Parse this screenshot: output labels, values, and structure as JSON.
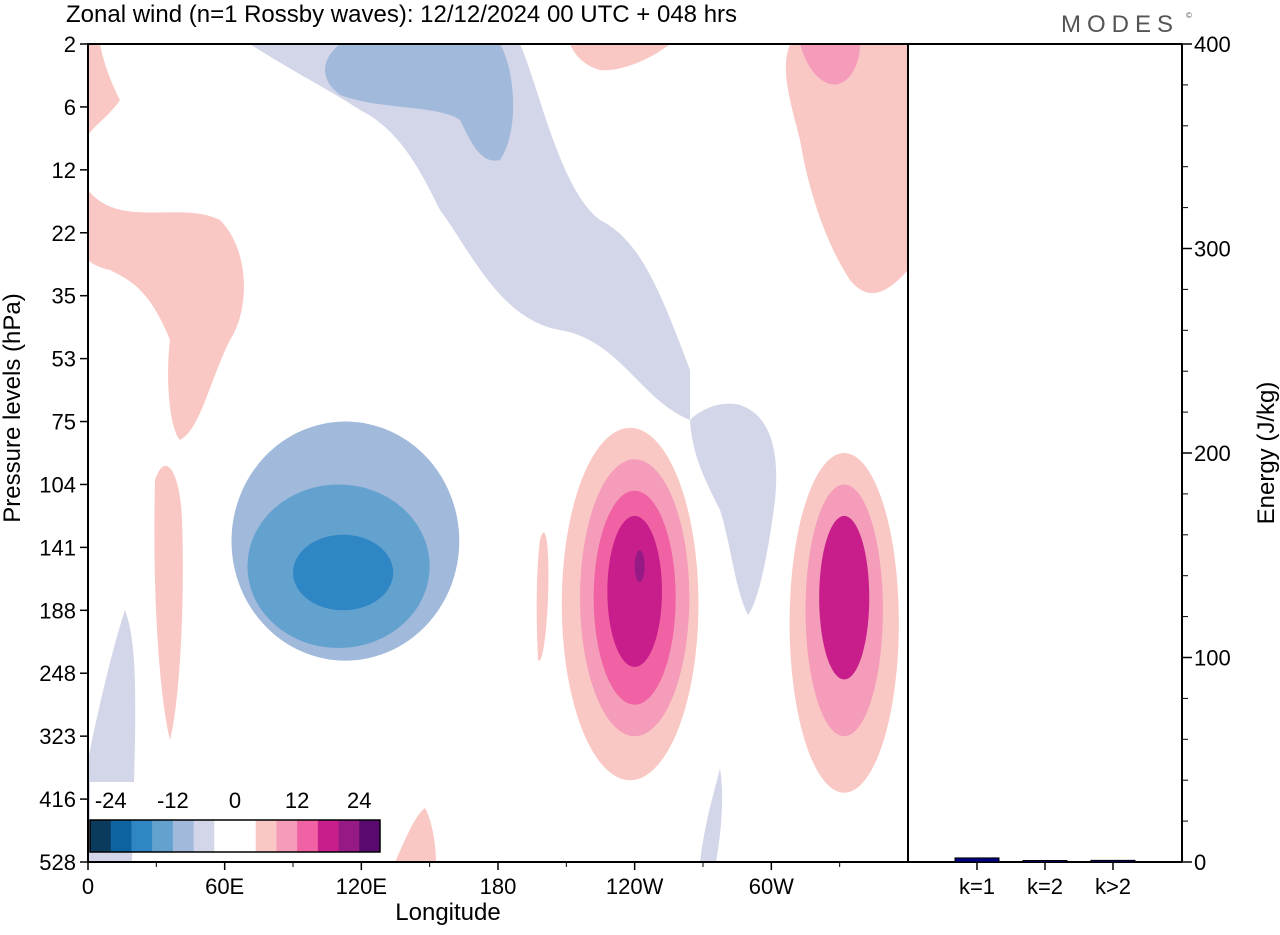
{
  "title": "Zonal wind (n=1 Rossby waves):  12/12/2024  00 UTC  + 048 hrs",
  "brand": "MODES",
  "brand_mark": "©",
  "chart_data": [
    {
      "type": "heatmap",
      "xlabel": "Longitude",
      "ylabel": "Pressure levels (hPa)",
      "x_ticks": [
        {
          "lon": 0,
          "label": "0"
        },
        {
          "lon": 60,
          "label": "60E"
        },
        {
          "lon": 120,
          "label": "120E"
        },
        {
          "lon": 180,
          "label": "180"
        },
        {
          "lon": 240,
          "label": "120W"
        },
        {
          "lon": 300,
          "label": "60W"
        }
      ],
      "xlim": [
        0,
        360
      ],
      "y_levels": [
        "2",
        "6",
        "12",
        "22",
        "35",
        "53",
        "75",
        "104",
        "141",
        "188",
        "248",
        "323",
        "416",
        "528"
      ],
      "colorbar": {
        "labels": [
          "-24",
          "-12",
          "0",
          "12",
          "24"
        ],
        "colors": [
          "#0a3b5c",
          "#0d62a0",
          "#2f86c4",
          "#63a2cf",
          "#a1b9da",
          "#d3d6e8",
          "#ffffff",
          "#ffffff",
          "#f9c8c4",
          "#f59cba",
          "#f062a3",
          "#c81e8c",
          "#961a86",
          "#5a0a6e"
        ]
      },
      "fields": [
        {
          "name": "neg-1",
          "lon": 113,
          "level": 7.9,
          "rx": 50,
          "ry": 1.9,
          "value": -6
        },
        {
          "name": "neg-2",
          "lon": 110,
          "level": 8.3,
          "rx": 40,
          "ry": 1.3,
          "value": -12
        },
        {
          "name": "neg-3",
          "lon": 112,
          "level": 8.4,
          "rx": 22,
          "ry": 0.6,
          "value": -18
        },
        {
          "name": "pos-a1",
          "lon": 238,
          "level": 8.9,
          "rx": 30,
          "ry": 2.8,
          "value": 6
        },
        {
          "name": "pos-a2",
          "lon": 240,
          "level": 8.8,
          "rx": 24,
          "ry": 2.2,
          "value": 12
        },
        {
          "name": "pos-a3",
          "lon": 240,
          "level": 8.8,
          "rx": 18,
          "ry": 1.7,
          "value": 18
        },
        {
          "name": "pos-a4",
          "lon": 240,
          "level": 8.7,
          "rx": 12,
          "ry": 1.2,
          "value": 24
        },
        {
          "name": "pos-b1",
          "lon": 332,
          "level": 9.2,
          "rx": 24,
          "ry": 2.7,
          "value": 6
        },
        {
          "name": "pos-b2",
          "lon": 332,
          "level": 9.0,
          "rx": 17,
          "ry": 2.0,
          "value": 12
        },
        {
          "name": "pos-b3",
          "lon": 332,
          "level": 8.8,
          "rx": 11,
          "ry": 1.3,
          "value": 24
        }
      ]
    },
    {
      "type": "bar",
      "ylabel": "Energy (J/kg)",
      "categories": [
        "k=1",
        "k=2",
        "k>2"
      ],
      "values": [
        2,
        0.5,
        0.8
      ],
      "ylim": [
        0,
        400
      ],
      "y_ticks": [
        "0",
        "100",
        "200",
        "300",
        "400"
      ],
      "bar_color": "#000080"
    }
  ]
}
